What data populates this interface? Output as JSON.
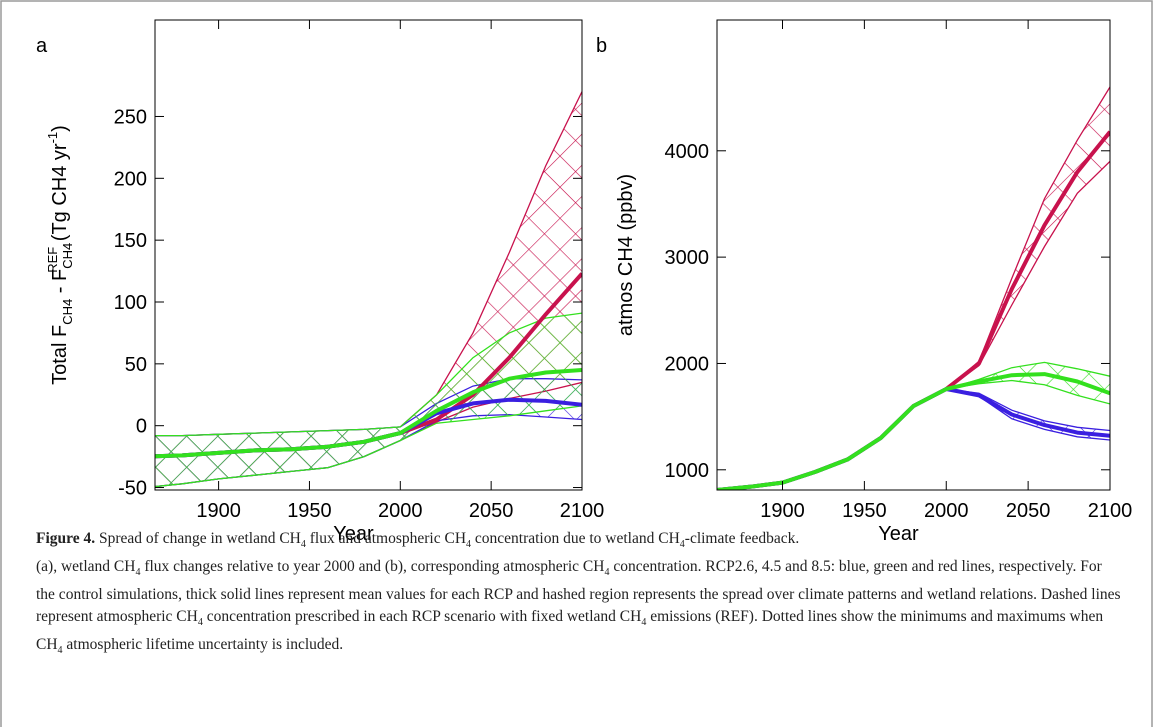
{
  "chart_data": [
    {
      "type": "line",
      "panel_label": "a",
      "xlabel": "Year",
      "ylabel": [
        {
          "t": "Total F"
        },
        {
          "sub": "CH4"
        },
        {
          "t": " - F"
        },
        {
          "sub": "CH4"
        },
        {
          "sup": "REF"
        },
        {
          "t": " (Tg CH4 yr"
        },
        {
          "sup": "-1"
        },
        {
          "t": ")"
        }
      ],
      "x": [
        1860,
        1880,
        1900,
        1920,
        1940,
        1960,
        1980,
        2000,
        2020,
        2040,
        2060,
        2080,
        2100
      ],
      "xlim": [
        1865,
        2100
      ],
      "xticks": [
        1900,
        1950,
        2000,
        2050,
        2100
      ],
      "ylim": [
        -52,
        328
      ],
      "yticks": [
        -50,
        0,
        50,
        100,
        150,
        200,
        250
      ],
      "series": [
        {
          "color": "#c8124d",
          "values": [
            -25,
            -24,
            -22,
            -20,
            -19,
            -17,
            -13,
            -6,
            5,
            25,
            55,
            90,
            123
          ],
          "lower": [
            -50,
            -47,
            -43,
            -40,
            -37,
            -34,
            -25,
            -12,
            3,
            15,
            22,
            28,
            35
          ],
          "upper": [
            -8,
            -8,
            -7,
            -6,
            -5,
            -4,
            -3,
            -1,
            25,
            75,
            140,
            210,
            270
          ]
        },
        {
          "color": "#3a1fe0",
          "values": [
            -25,
            -24,
            -22,
            -20,
            -19,
            -17,
            -13,
            -6,
            10,
            18,
            21,
            20,
            17
          ],
          "lower": [
            -50,
            -47,
            -43,
            -40,
            -37,
            -34,
            -25,
            -12,
            4,
            8,
            9,
            7,
            5
          ],
          "upper": [
            -8,
            -8,
            -7,
            -6,
            -5,
            -4,
            -3,
            -1,
            18,
            32,
            38,
            38,
            37
          ]
        },
        {
          "color": "#33e01e",
          "values": [
            -25,
            -24,
            -22,
            -20,
            -19,
            -17,
            -13,
            -6,
            12,
            27,
            38,
            43,
            45
          ],
          "lower": [
            -50,
            -47,
            -43,
            -40,
            -37,
            -34,
            -25,
            -12,
            2,
            5,
            8,
            12,
            16
          ],
          "upper": [
            -8,
            -8,
            -7,
            -6,
            -5,
            -4,
            -3,
            -1,
            25,
            55,
            75,
            87,
            91
          ]
        }
      ]
    },
    {
      "type": "line",
      "panel_label": "b",
      "xlabel": "Year",
      "ylabel": [
        {
          "t": "atmos CH4 (ppbv)"
        }
      ],
      "x": [
        1860,
        1880,
        1900,
        1920,
        1940,
        1960,
        1980,
        2000,
        2020,
        2040,
        2060,
        2080,
        2100
      ],
      "xlim": [
        1860,
        2100
      ],
      "xticks": [
        1900,
        1950,
        2000,
        2050,
        2100
      ],
      "ylim": [
        810,
        5230
      ],
      "yticks": [
        1000,
        2000,
        3000,
        4000
      ],
      "series": [
        {
          "color": "#c8124d",
          "values": [
            810,
            840,
            880,
            980,
            1100,
            1300,
            1600,
            1760,
            2000,
            2700,
            3300,
            3800,
            4180
          ],
          "lower": [
            810,
            840,
            880,
            980,
            1100,
            1300,
            1600,
            1760,
            1980,
            2550,
            3100,
            3600,
            3900
          ],
          "upper": [
            810,
            840,
            880,
            980,
            1100,
            1300,
            1600,
            1760,
            2020,
            2800,
            3550,
            4100,
            4600
          ]
        },
        {
          "color": "#3a1fe0",
          "values": [
            810,
            840,
            880,
            980,
            1100,
            1300,
            1600,
            1760,
            1700,
            1520,
            1420,
            1350,
            1320
          ],
          "lower": [
            810,
            840,
            880,
            980,
            1100,
            1300,
            1600,
            1760,
            1690,
            1480,
            1380,
            1310,
            1280
          ],
          "upper": [
            810,
            840,
            880,
            980,
            1100,
            1300,
            1600,
            1760,
            1720,
            1560,
            1460,
            1400,
            1370
          ]
        },
        {
          "color": "#33e01e",
          "values": [
            810,
            840,
            880,
            980,
            1100,
            1300,
            1600,
            1760,
            1830,
            1890,
            1900,
            1830,
            1720
          ],
          "lower": [
            810,
            840,
            880,
            980,
            1100,
            1300,
            1600,
            1760,
            1810,
            1840,
            1800,
            1700,
            1620
          ],
          "upper": [
            810,
            840,
            880,
            980,
            1100,
            1300,
            1600,
            1760,
            1850,
            1960,
            2010,
            1950,
            1880
          ]
        }
      ]
    }
  ],
  "caption": {
    "label": "Figure 4.",
    "paragraphs": [
      [
        {
          "t": " Spread of change in wetland CH"
        },
        {
          "sub": "4"
        },
        {
          "t": " flux and atmospheric CH"
        },
        {
          "sub": "4"
        },
        {
          "t": " concentration due to wetland CH"
        },
        {
          "sub": "4"
        },
        {
          "t": "-climate feedback."
        }
      ],
      [
        {
          "t": "(a), wetland CH"
        },
        {
          "sub": "4"
        },
        {
          "t": " flux changes relative to year 2000 and (b), corresponding atmospheric CH"
        },
        {
          "sub": "4"
        },
        {
          "t": " concentration. RCP2.6, 4.5 and 8.5: blue, green and red lines, respectively. For the control simulations, thick solid lines represent mean values for each RCP and hashed region represents the spread over climate patterns and wetland relations. Dashed lines represent atmospheric CH"
        },
        {
          "sub": "4"
        },
        {
          "t": " concentration prescribed in each RCP scenario with fixed wetland CH"
        },
        {
          "sub": "4"
        },
        {
          "t": " emissions (REF). Dotted lines show the minimums and maximums when CH"
        },
        {
          "sub": "4"
        },
        {
          "t": " atmospheric lifetime uncertainty is included."
        }
      ]
    ]
  }
}
